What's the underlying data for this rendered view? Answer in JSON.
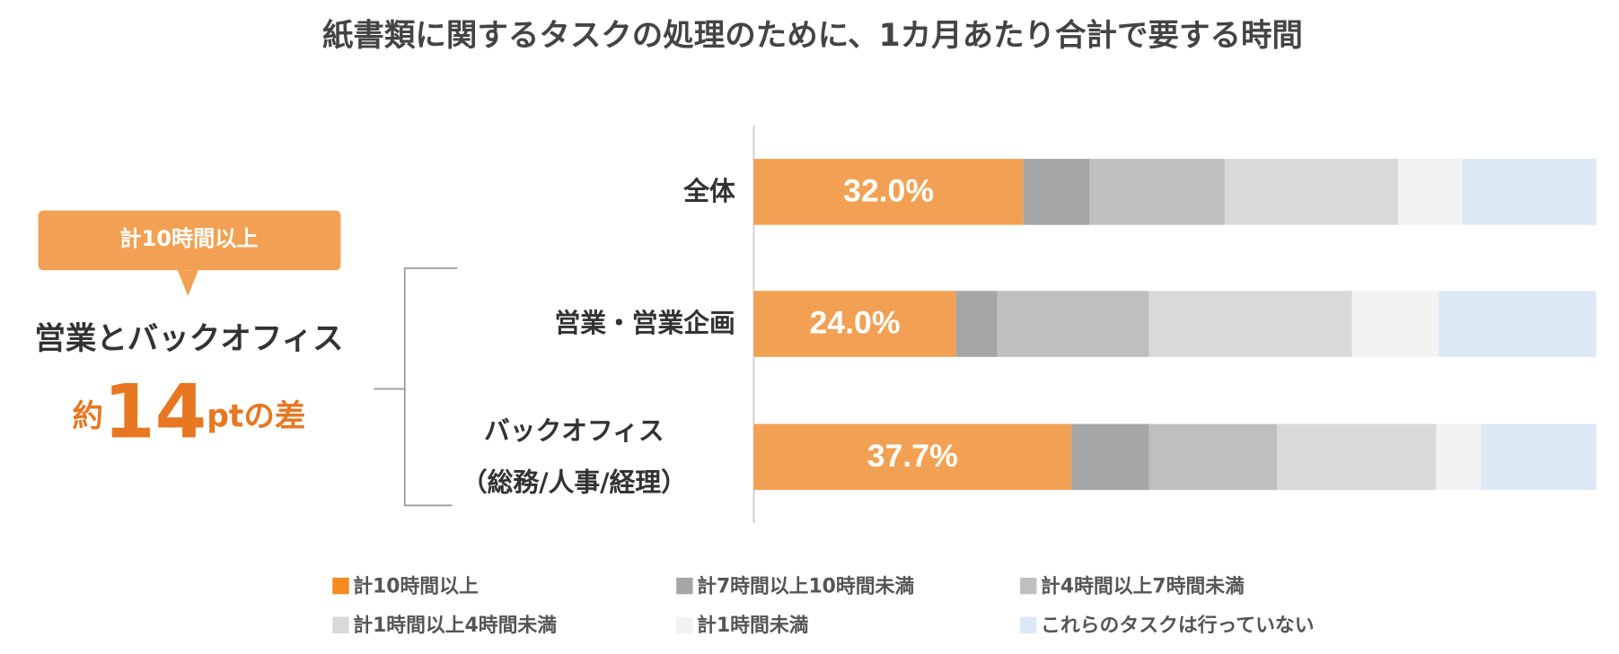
{
  "chart_data": {
    "type": "stacked-bar-horizontal",
    "title": "紙書類に関するタスクの処理のために、1カ月あたり合計で要する時間",
    "categories": [
      "全体",
      "営業・営業企画",
      "バックオフィス\n（総務/人事/経理）"
    ],
    "xlim": [
      0,
      100
    ],
    "series": [
      {
        "name": "計10時間以上",
        "color": "#f2a154",
        "legend_color": "#f58a1f",
        "values": [
          32.0,
          24.0,
          37.7
        ],
        "value_labels": [
          "32.0%",
          "24.0%",
          "37.7%"
        ]
      },
      {
        "name": "計7時間以上10時間未満",
        "color": "#a6a6a6",
        "values": [
          7.9,
          4.9,
          9.2
        ]
      },
      {
        "name": "計4時間以上7時間未満",
        "color": "#bfbfbf",
        "values": [
          16.0,
          18.0,
          15.2
        ]
      },
      {
        "name": "計1時間以上4時間未満",
        "color": "#d9d9d9",
        "values": [
          20.6,
          24.1,
          18.9
        ]
      },
      {
        "name": "計1時間未満",
        "color": "#f2f2f2",
        "values": [
          7.6,
          10.3,
          5.3
        ]
      },
      {
        "name": "これらのタスクは行っていない",
        "color": "#dde8f5",
        "values": [
          15.9,
          18.7,
          13.7
        ]
      }
    ],
    "annotation": {
      "callout": "計10時間以上",
      "subject": "営業とバックオフィス",
      "prefix": "約",
      "number": "14",
      "suffix": "ptの差"
    }
  }
}
